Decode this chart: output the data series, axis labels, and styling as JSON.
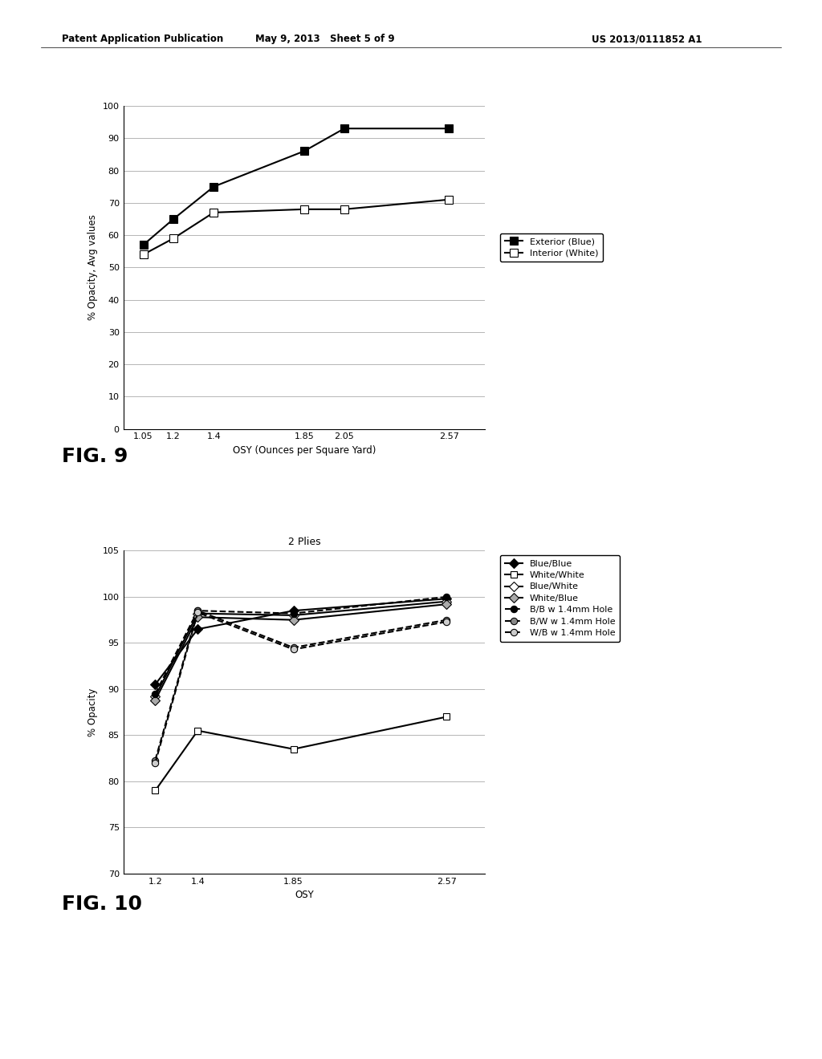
{
  "header_left": "Patent Application Publication",
  "header_mid": "May 9, 2013   Sheet 5 of 9",
  "header_right": "US 2013/0111852 A1",
  "fig9": {
    "xlabel": "OSY (Ounces per Square Yard)",
    "ylabel": "% Opacity, Avg values",
    "xticks": [
      1.05,
      1.2,
      1.4,
      1.85,
      2.05,
      2.57
    ],
    "xtick_labels": [
      "1.05",
      "1.2",
      "1.4",
      "1.85",
      "2.05",
      "2.57"
    ],
    "ylim": [
      0,
      100
    ],
    "yticks": [
      0,
      10,
      20,
      30,
      40,
      50,
      60,
      70,
      80,
      90,
      100
    ],
    "xlim": [
      0.95,
      2.75
    ],
    "series": [
      {
        "label": "Exterior (Blue)",
        "x": [
          1.05,
          1.2,
          1.4,
          1.85,
          2.05,
          2.57
        ],
        "y": [
          57,
          65,
          75,
          86,
          93,
          93
        ],
        "color": "#000000",
        "marker": "s",
        "markersize": 7,
        "linestyle": "-",
        "linewidth": 1.5,
        "markerfacecolor": "#000000"
      },
      {
        "label": "Interior (White)",
        "x": [
          1.05,
          1.2,
          1.4,
          1.85,
          2.05,
          2.57
        ],
        "y": [
          54,
          59,
          67,
          68,
          68,
          71
        ],
        "color": "#000000",
        "marker": "s",
        "markersize": 7,
        "linestyle": "-",
        "linewidth": 1.5,
        "markerfacecolor": "#ffffff"
      }
    ],
    "fig_label": "FIG. 9"
  },
  "fig10": {
    "title": "2 Plies",
    "xlabel": "OSY",
    "ylabel": "% Opacity",
    "xticks": [
      1.2,
      1.4,
      1.85,
      2.57
    ],
    "xtick_labels": [
      "1.2",
      "1.4",
      "1.85",
      "2.57"
    ],
    "ylim": [
      70,
      105
    ],
    "yticks": [
      70,
      75,
      80,
      85,
      90,
      95,
      100,
      105
    ],
    "xlim": [
      1.05,
      2.75
    ],
    "series": [
      {
        "label": "Blue/Blue",
        "x": [
          1.2,
          1.4,
          1.85,
          2.57
        ],
        "y": [
          90.5,
          96.5,
          98.5,
          99.8
        ],
        "color": "#000000",
        "marker": "D",
        "markersize": 6,
        "linestyle": "-",
        "linewidth": 1.5,
        "markerfacecolor": "#000000"
      },
      {
        "label": "White/White",
        "x": [
          1.2,
          1.4,
          1.85,
          2.57
        ],
        "y": [
          79,
          85.5,
          83.5,
          87
        ],
        "color": "#000000",
        "marker": "s",
        "markersize": 6,
        "linestyle": "-",
        "linewidth": 1.5,
        "markerfacecolor": "#ffffff"
      },
      {
        "label": "Blue/White",
        "x": [
          1.2,
          1.4,
          1.85,
          2.57
        ],
        "y": [
          89.2,
          98.2,
          98.0,
          99.5
        ],
        "color": "#000000",
        "marker": "D",
        "markersize": 6,
        "linestyle": "-",
        "linewidth": 1.5,
        "markerfacecolor": "#ffffff"
      },
      {
        "label": "White/Blue",
        "x": [
          1.2,
          1.4,
          1.85,
          2.57
        ],
        "y": [
          88.8,
          97.8,
          97.5,
          99.2
        ],
        "color": "#000000",
        "marker": "D",
        "markersize": 6,
        "linestyle": "-",
        "linewidth": 1.5,
        "markerfacecolor": "#aaaaaa"
      },
      {
        "label": "B/B w 1.4mm Hole",
        "x": [
          1.2,
          1.4,
          1.85,
          2.57
        ],
        "y": [
          89.5,
          98.5,
          98.2,
          100.0
        ],
        "color": "#000000",
        "marker": "o",
        "markersize": 6,
        "linestyle": "--",
        "linewidth": 1.5,
        "markerfacecolor": "#000000"
      },
      {
        "label": "B/W w 1.4mm Hole",
        "x": [
          1.2,
          1.4,
          1.85,
          2.57
        ],
        "y": [
          82.3,
          98.5,
          94.5,
          97.5
        ],
        "color": "#000000",
        "marker": "o",
        "markersize": 6,
        "linestyle": "--",
        "linewidth": 1.5,
        "markerfacecolor": "#888888"
      },
      {
        "label": "W/B w 1.4mm Hole",
        "x": [
          1.2,
          1.4,
          1.85,
          2.57
        ],
        "y": [
          82.0,
          98.3,
          94.3,
          97.3
        ],
        "color": "#000000",
        "marker": "o",
        "markersize": 6,
        "linestyle": "--",
        "linewidth": 1.5,
        "markerfacecolor": "#cccccc"
      }
    ],
    "fig_label": "FIG. 10"
  },
  "bg_color": "#ffffff",
  "text_color": "#000000"
}
